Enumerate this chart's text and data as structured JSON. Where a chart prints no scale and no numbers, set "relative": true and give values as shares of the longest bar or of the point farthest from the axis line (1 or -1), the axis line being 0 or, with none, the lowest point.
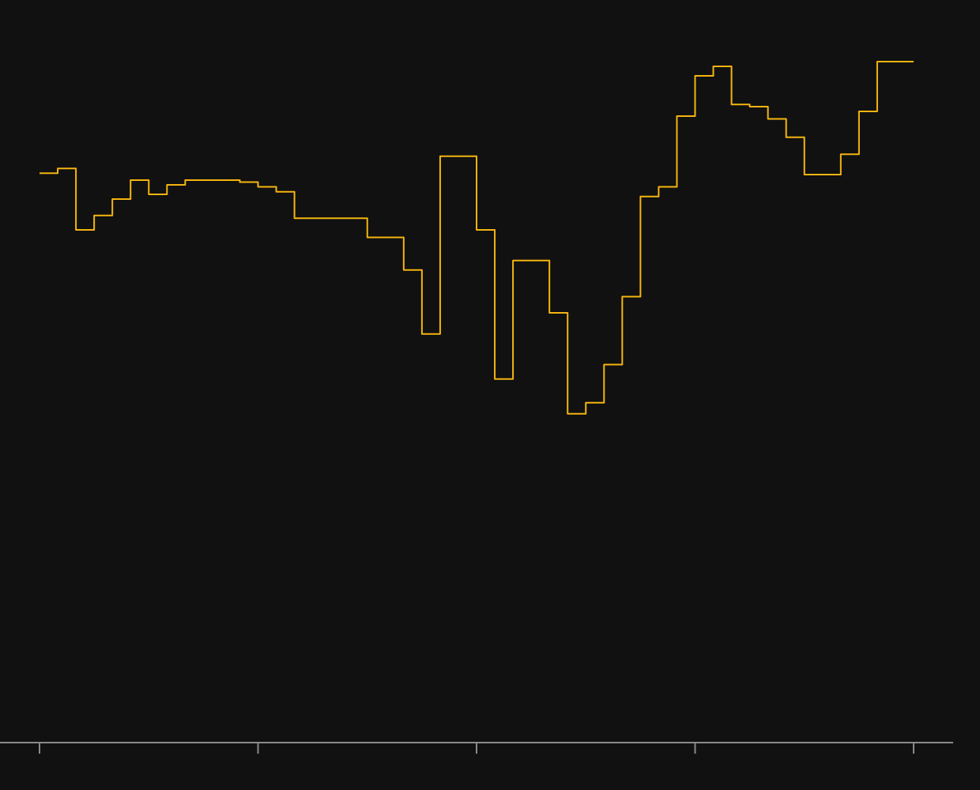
{
  "chart_data": {
    "type": "step",
    "relative": true,
    "color": "#f5b50f",
    "line_style": "solid",
    "categories": [
      null,
      null,
      null,
      null,
      null,
      null,
      null,
      null,
      null,
      null,
      null,
      null,
      null,
      null,
      null,
      null,
      null,
      null,
      null,
      null,
      null,
      null,
      null,
      null,
      null,
      null,
      null,
      null,
      null,
      null,
      null,
      null,
      null,
      null,
      null,
      null,
      null,
      null,
      null,
      null,
      null,
      null,
      null,
      null,
      null,
      null,
      null,
      null,
      null
    ],
    "values": [
      0.836,
      0.843,
      0.753,
      0.774,
      0.798,
      0.826,
      0.805,
      0.819,
      0.826,
      0.826,
      0.826,
      0.823,
      0.816,
      0.809,
      0.77,
      0.77,
      0.77,
      0.77,
      0.742,
      0.742,
      0.694,
      0.6,
      0.861,
      0.861,
      0.753,
      0.534,
      0.708,
      0.708,
      0.631,
      0.483,
      0.499,
      0.555,
      0.655,
      0.802,
      0.816,
      0.92,
      0.979,
      0.993,
      0.937,
      0.934,
      0.916,
      0.889,
      0.834,
      0.834,
      0.864,
      0.927,
      1,
      1,
      1
    ]
  }
}
